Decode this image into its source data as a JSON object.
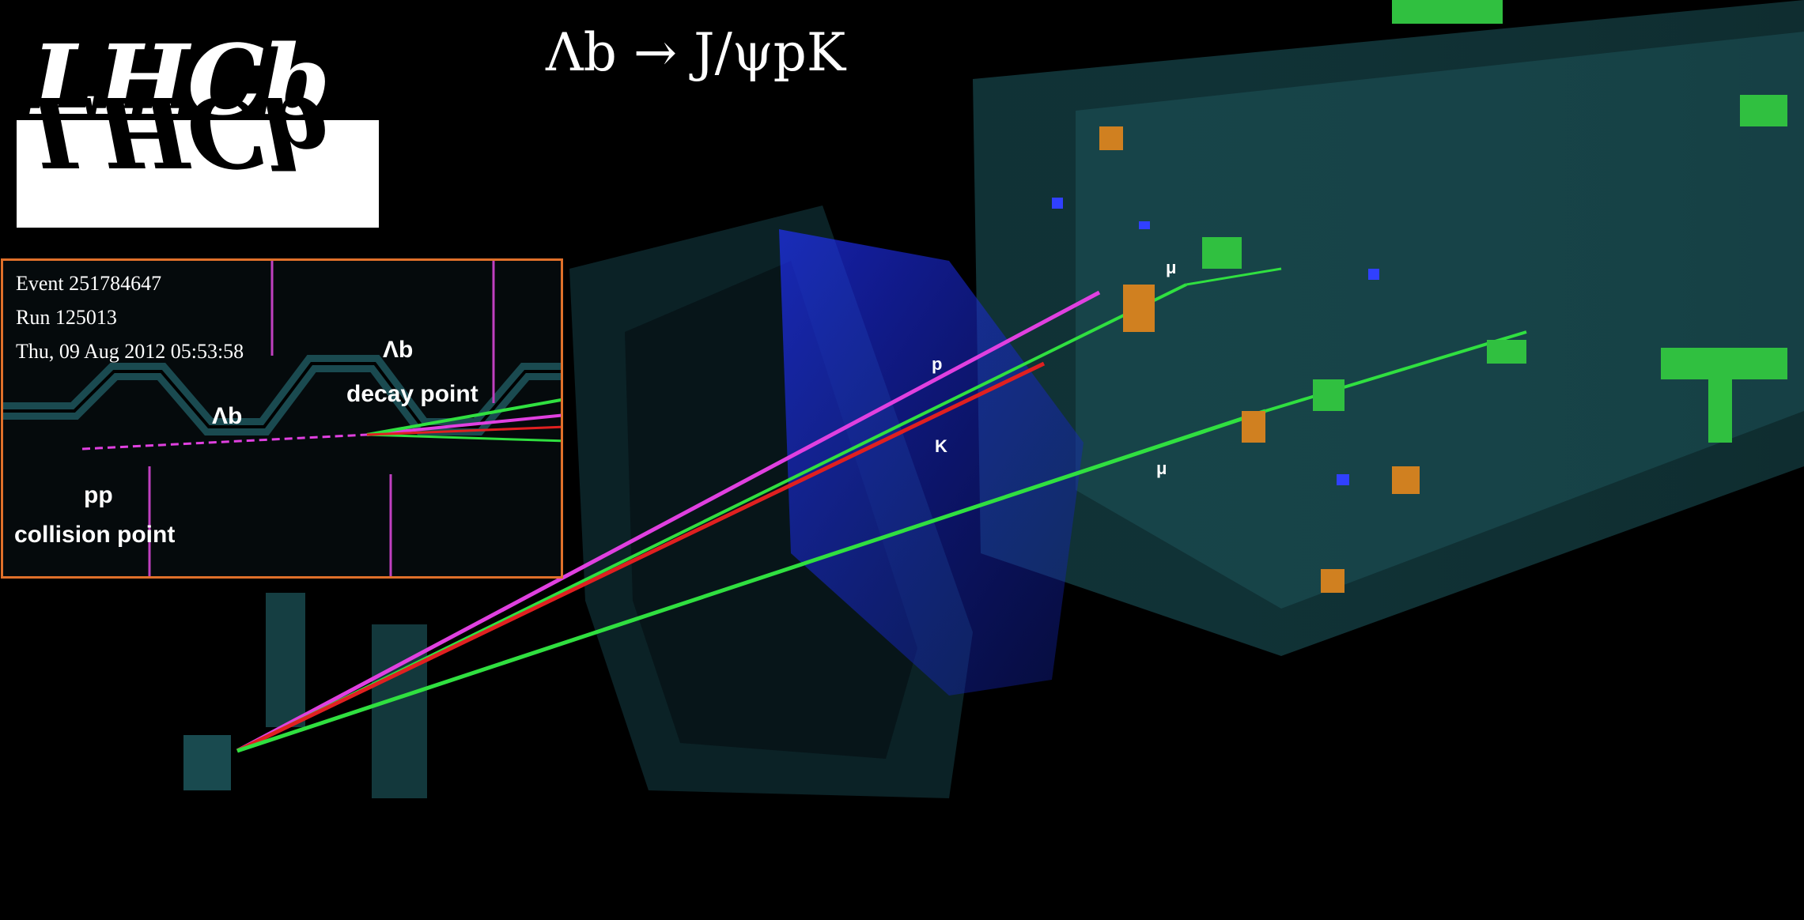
{
  "logo": {
    "text": "LHCb"
  },
  "title": "Λb → J/ψpK",
  "event_info": {
    "event": "Event 251784647",
    "run": "Run 125013",
    "timestamp": "Thu, 09 Aug 2012 05:53:58"
  },
  "inset_labels": {
    "lambda_b_decay": "Λb",
    "decay_point": "decay point",
    "lambda_b_track": "Λb",
    "pp": "pp",
    "collision_point": "collision point"
  },
  "track_labels": {
    "p": "p",
    "k": "K",
    "mu_top": "μ",
    "mu_bottom": "μ"
  },
  "colors": {
    "background": "#000000",
    "inset_border": "#e0702a",
    "proton_track": "#e040e0",
    "kaon_track": "#e02020",
    "muon_track": "#30e040",
    "detector": "#3aa0a8",
    "hits_blue": "#3040ff",
    "hits_orange": "#d08020",
    "hits_green": "#40d040"
  }
}
